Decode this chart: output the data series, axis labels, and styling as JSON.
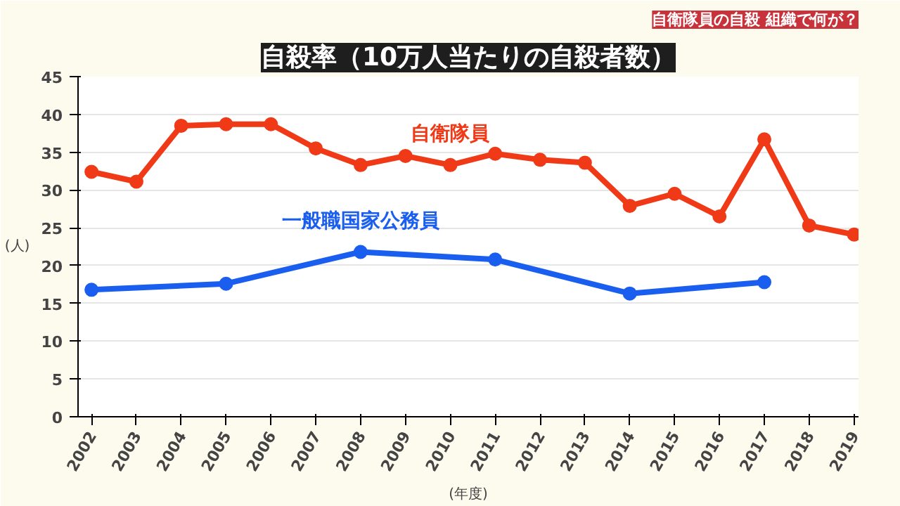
{
  "chart_data": {
    "type": "line",
    "title": "自殺率（10万人当たりの自殺者数）",
    "annotations": [
      "自衛隊員の自殺 組織で何が？"
    ],
    "ylabel": "(人)",
    "xlabel": "(年度)",
    "x": [
      2002,
      2003,
      2004,
      2005,
      2006,
      2007,
      2008,
      2009,
      2010,
      2011,
      2012,
      2013,
      2014,
      2015,
      2016,
      2017,
      2018,
      2019
    ],
    "xlim": [
      2001.7,
      2019.1
    ],
    "xticks": [
      2002,
      2003,
      2004,
      2005,
      2006,
      2007,
      2008,
      2009,
      2010,
      2011,
      2012,
      2013,
      2014,
      2015,
      2016,
      2017,
      2018,
      2019
    ],
    "ylim": [
      0,
      45
    ],
    "yticks": [
      0,
      5,
      10,
      15,
      20,
      25,
      30,
      35,
      40,
      45
    ],
    "grid": "y",
    "legend": false,
    "marker": "circle",
    "line_style": "solid",
    "series": [
      {
        "name": "自衛隊員",
        "color": "#f03a17",
        "values": [
          32.4,
          31.1,
          38.5,
          38.7,
          38.7,
          35.5,
          33.3,
          34.5,
          33.3,
          34.8,
          34.0,
          33.6,
          27.9,
          29.5,
          26.5,
          36.7,
          25.3,
          24.1
        ]
      },
      {
        "name": "一般職国家公務員",
        "color": "#1a5ef0",
        "x": [
          2002,
          2005,
          2008,
          2011,
          2014,
          2017
        ],
        "values": [
          16.8,
          17.6,
          21.8,
          20.8,
          16.3,
          17.8
        ]
      }
    ]
  }
}
